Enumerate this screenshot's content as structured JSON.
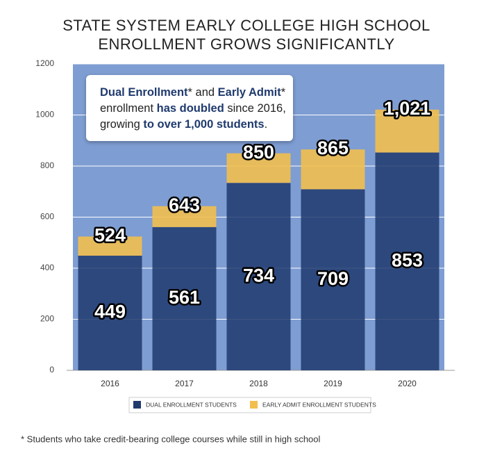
{
  "chart_data": {
    "type": "stacked_bar",
    "title": [
      "STATE SYSTEM EARLY COLLEGE HIGH SCHOOL",
      "ENROLLMENT GROWS SIGNIFICANTLY"
    ],
    "categories": [
      "2016",
      "2017",
      "2018",
      "2019",
      "2020"
    ],
    "series": [
      {
        "name": "DUAL ENROLLMENT STUDENTS",
        "color": "#1f3a6e",
        "values": [
          449,
          561,
          734,
          709,
          853
        ]
      },
      {
        "name": "EARLY ADMIT ENROLLMENT STUDENTS",
        "color": "#f2bf4e",
        "values": [
          75,
          82,
          116,
          156,
          168
        ]
      }
    ],
    "totals": {
      "values": [
        524,
        643,
        850,
        865,
        1021
      ],
      "value_labels": [
        "524",
        "643",
        "850",
        "865",
        "1,021"
      ]
    },
    "ylim": [
      0,
      1200
    ],
    "yticks": [
      0,
      200,
      400,
      600,
      800,
      1000,
      1200
    ],
    "grid": true,
    "annotation": [
      {
        "text": "Dual Enrollment",
        "bold": true
      },
      {
        "text": "* and ",
        "bold": false
      },
      {
        "text": "Early Admit",
        "bold": true
      },
      {
        "text": "*",
        "bold": false
      },
      {
        "text": "enrollment ",
        "bold": false
      },
      {
        "text": "has doubled",
        "bold": true
      },
      {
        "text": " since 2016,",
        "bold": false
      },
      {
        "text": "growing ",
        "bold": false
      },
      {
        "text": "to over 1,000 students",
        "bold": true
      },
      {
        "text": ".",
        "bold": false
      }
    ],
    "footnote": "* Students who take credit-bearing college courses while still in high school"
  }
}
